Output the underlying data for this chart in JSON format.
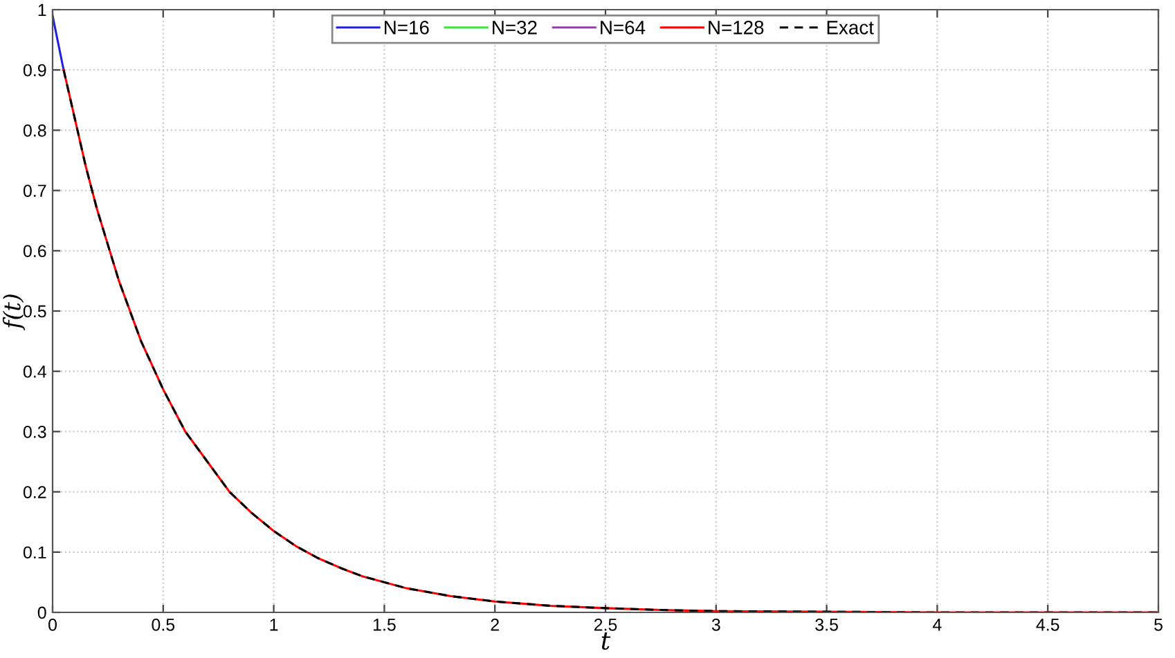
{
  "chart_data": {
    "type": "line",
    "xlabel": "t",
    "ylabel": "f(t)",
    "xlim": [
      0,
      5
    ],
    "ylim": [
      0,
      1
    ],
    "xticks": [
      0,
      0.5,
      1,
      1.5,
      2,
      2.5,
      3,
      3.5,
      4,
      4.5,
      5
    ],
    "yticks": [
      0,
      0.1,
      0.2,
      0.3,
      0.4,
      0.5,
      0.6,
      0.7,
      0.8,
      0.9,
      1
    ],
    "grid": true,
    "legend": "top",
    "marker": "none",
    "series": [
      {
        "name": "N=16",
        "color": "#2020e0",
        "line_style": "solid",
        "x": [
          0,
          0.05
        ],
        "values": [
          0.99,
          0.9
        ]
      },
      {
        "name": "N=32",
        "color": "#40e040",
        "line_style": "solid"
      },
      {
        "name": "N=64",
        "color": "#9040a0",
        "line_style": "solid"
      },
      {
        "name": "N=128",
        "color": "#ff0000",
        "line_style": "solid",
        "x": [
          0.05,
          0.1,
          0.15,
          0.2,
          0.25,
          0.3,
          0.35,
          0.4,
          0.45,
          0.5,
          0.6,
          0.7,
          0.8,
          0.9,
          1.0,
          1.1,
          1.2,
          1.3,
          1.4,
          1.5,
          1.6,
          1.8,
          2.0,
          2.25,
          2.5,
          2.75,
          3,
          3.5,
          4,
          4.5,
          5
        ],
        "values": [
          0.9,
          0.82,
          0.74,
          0.67,
          0.61,
          0.55,
          0.5,
          0.45,
          0.41,
          0.37,
          0.3,
          0.25,
          0.2,
          0.165,
          0.135,
          0.11,
          0.09,
          0.074,
          0.06,
          0.05,
          0.04,
          0.027,
          0.018,
          0.011,
          0.007,
          0.004,
          0.002,
          0.001,
          0,
          0,
          0
        ]
      },
      {
        "name": "Exact",
        "color": "#000000",
        "line_style": "dashed",
        "x": [
          0.05,
          0.1,
          0.15,
          0.2,
          0.25,
          0.3,
          0.35,
          0.4,
          0.45,
          0.5,
          0.6,
          0.7,
          0.8,
          0.9,
          1.0,
          1.1,
          1.2,
          1.3,
          1.4,
          1.5,
          1.6,
          1.8,
          2.0,
          2.25,
          2.5,
          2.75,
          3,
          3.5,
          4,
          4.5,
          5
        ],
        "values": [
          0.9,
          0.82,
          0.74,
          0.67,
          0.61,
          0.55,
          0.5,
          0.45,
          0.41,
          0.37,
          0.3,
          0.25,
          0.2,
          0.165,
          0.135,
          0.11,
          0.09,
          0.074,
          0.06,
          0.05,
          0.04,
          0.027,
          0.018,
          0.011,
          0.007,
          0.004,
          0.002,
          0.001,
          0,
          0,
          0
        ]
      }
    ]
  }
}
